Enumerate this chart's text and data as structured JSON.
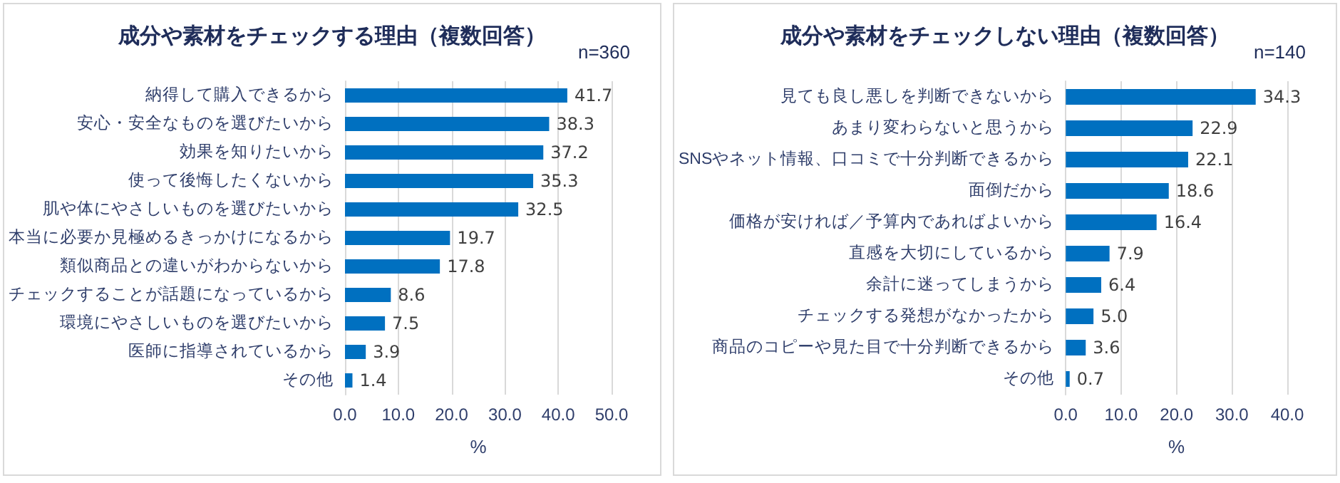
{
  "chart_data": [
    {
      "type": "bar",
      "orientation": "horizontal",
      "title": "成分や素材をチェックする理由（複数回答）",
      "subtitle": "n=360",
      "xlabel": "%",
      "categories": [
        "納得して購入できるから",
        "安心・安全なものを選びたいから",
        "効果を知りたいから",
        "使って後悔したくないから",
        "肌や体にやさしいものを選びたいから",
        "本当に必要か見極めるきっかけになるから",
        "類似商品との違いがわからないから",
        "チェックすることが話題になっているから",
        "環境にやさしいものを選びたいから",
        "医師に指導されているから",
        "その他"
      ],
      "values": [
        41.7,
        38.3,
        37.2,
        35.3,
        32.5,
        19.7,
        17.8,
        8.6,
        7.5,
        3.9,
        1.4
      ],
      "value_labels": [
        "41.7",
        "38.3",
        "37.2",
        "35.3",
        "32.5",
        "19.7",
        "17.8",
        "8.6",
        "7.5",
        "3.9",
        "1.4"
      ],
      "color": "#0070c0",
      "xlim": [
        0,
        50
      ],
      "xticks": [
        {
          "value": 0,
          "label": "0.0"
        },
        {
          "value": 10,
          "label": "10.0"
        },
        {
          "value": 20,
          "label": "20.0"
        },
        {
          "value": 30,
          "label": "30.0"
        },
        {
          "value": 40,
          "label": "40.0"
        },
        {
          "value": 50,
          "label": "50.0"
        }
      ],
      "grid": "x"
    },
    {
      "type": "bar",
      "orientation": "horizontal",
      "title": "成分や素材をチェックしない理由（複数回答）",
      "subtitle": "n=140",
      "xlabel": "%",
      "categories": [
        "見ても良し悪しを判断できないから",
        "あまり変わらないと思うから",
        "SNSやネット情報、口コミで十分判断できるから",
        "面倒だから",
        "価格が安ければ／予算内であればよいから",
        "直感を大切にしているから",
        "余計に迷ってしまうから",
        "チェックする発想がなかったから",
        "商品のコピーや見た目で十分判断できるから",
        "その他"
      ],
      "values": [
        34.3,
        22.9,
        22.1,
        18.6,
        16.4,
        7.9,
        6.4,
        5.0,
        3.6,
        0.7
      ],
      "value_labels": [
        "34.3",
        "22.9",
        "22.1",
        "18.6",
        "16.4",
        "7.9",
        "6.4",
        "5.0",
        "3.6",
        "0.7"
      ],
      "color": "#0070c0",
      "xlim": [
        0,
        40
      ],
      "xticks": [
        {
          "value": 0,
          "label": "0.0"
        },
        {
          "value": 10,
          "label": "10.0"
        },
        {
          "value": 20,
          "label": "20.0"
        },
        {
          "value": 30,
          "label": "30.0"
        },
        {
          "value": 40,
          "label": "40.0"
        }
      ],
      "grid": "x"
    }
  ]
}
